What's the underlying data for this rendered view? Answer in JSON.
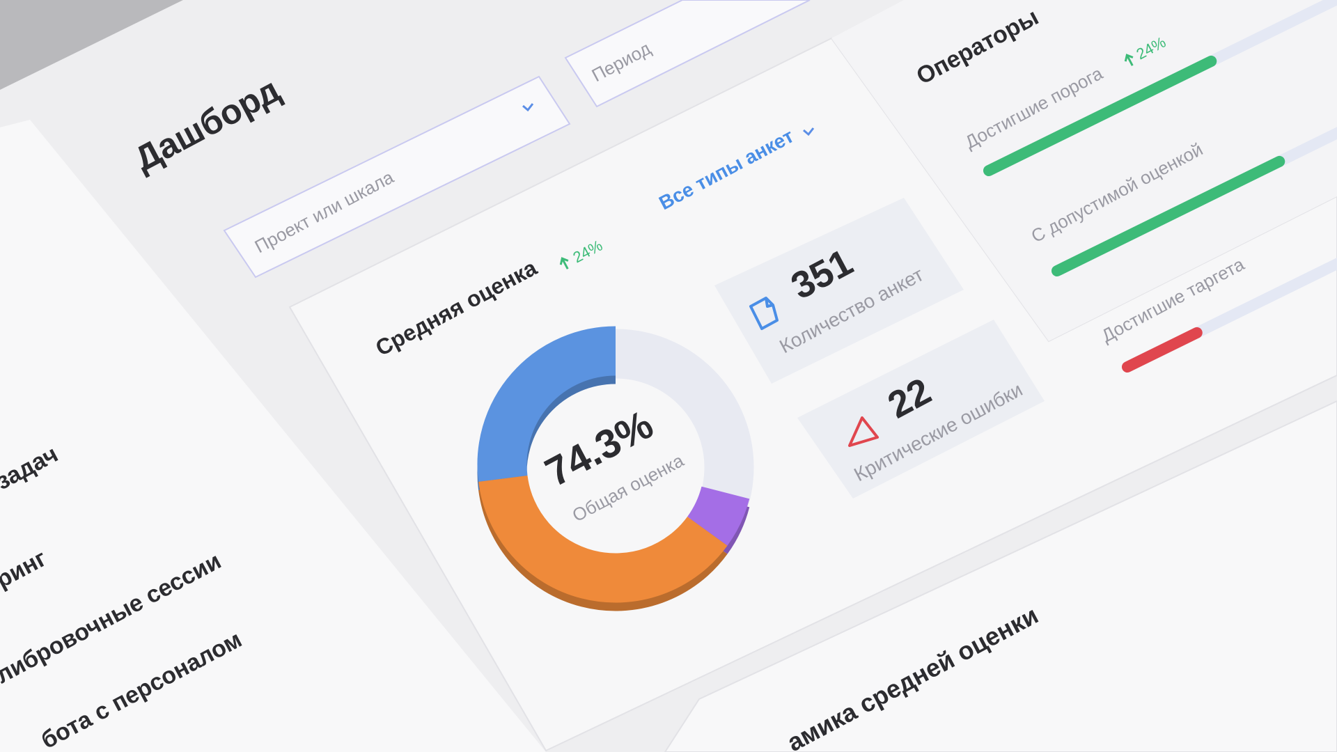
{
  "header": {
    "title": "Дашборд"
  },
  "filters": {
    "project": "Проект или шкала",
    "period": "Период",
    "survey_types": "Все типы анкет"
  },
  "sidebar": {
    "items": [
      "задач",
      "ринг",
      "либровочные сессии",
      "бота с персоналом"
    ]
  },
  "score_card": {
    "title": "Средняя оценка",
    "change": "24%",
    "total": "74.3%",
    "total_label": "Общая оценка",
    "segments": [
      {
        "color": "#5b93e0",
        "value": 27
      },
      {
        "color": "#ef8a3a",
        "value": 38
      },
      {
        "color": "#a46ee6",
        "value": 6
      }
    ],
    "stats": [
      {
        "value": "351",
        "label": "Количество анкет"
      },
      {
        "value": "22",
        "label": "Критические ошибки"
      }
    ]
  },
  "operators": {
    "title": "Операторы",
    "change": "24%",
    "rows": [
      {
        "label": "Достигшие порога",
        "value": 64,
        "color": "#3dbb78"
      },
      {
        "label": "С допустимой оценкой",
        "value": 64,
        "color": "#3dbb78"
      },
      {
        "label": "Достигшие таргета",
        "value": 20,
        "color": "#e0464e"
      }
    ]
  },
  "bottom_card": {
    "title": "амика средней оценки"
  }
}
